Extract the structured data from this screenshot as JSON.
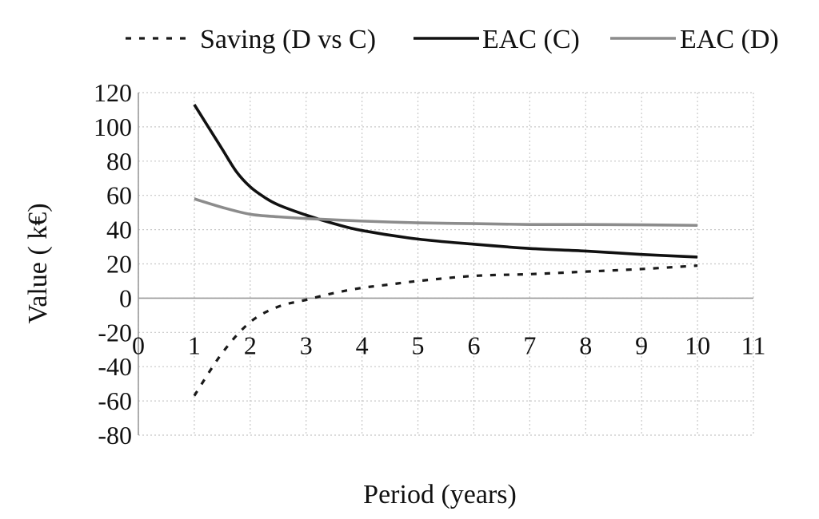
{
  "chart_data": {
    "type": "line",
    "title": "",
    "xlabel": "Period (years)",
    "ylabel": "Value ( k€)",
    "xlim": [
      0,
      11
    ],
    "ylim": [
      -80,
      120
    ],
    "xticks": [
      0,
      1,
      2,
      3,
      4,
      5,
      6,
      7,
      8,
      9,
      10,
      11
    ],
    "yticks": [
      -80,
      -60,
      -40,
      -20,
      0,
      20,
      40,
      60,
      80,
      100,
      120
    ],
    "grid": true,
    "legend_position": "top",
    "series": [
      {
        "name": "Saving (D vs C)",
        "style": "dashed",
        "color": "#1a1a1a",
        "x": [
          1,
          1.5,
          2,
          2.5,
          3,
          3.5,
          4,
          4.5,
          5,
          6,
          7,
          8,
          9,
          10
        ],
        "values": [
          -57,
          -32,
          -14,
          -5,
          -1,
          3,
          6,
          8,
          10,
          13,
          14,
          15.5,
          17,
          19
        ]
      },
      {
        "name": "EAC (C)",
        "style": "solid",
        "color": "#111111",
        "x": [
          1,
          1.25,
          1.5,
          1.75,
          2,
          2.25,
          2.5,
          3,
          3.5,
          4,
          5,
          6,
          7,
          8,
          9,
          10
        ],
        "values": [
          113,
          100,
          87,
          74,
          65,
          59,
          54.5,
          48.5,
          43.5,
          39.5,
          34.5,
          31.5,
          29,
          27.5,
          25.5,
          24
        ]
      },
      {
        "name": "EAC (D)",
        "style": "solid",
        "color": "#8c8c8c",
        "x": [
          1,
          1.5,
          2,
          2.5,
          3,
          4,
          5,
          6,
          7,
          8,
          9,
          10
        ],
        "values": [
          58,
          53,
          49,
          47.5,
          46.5,
          45,
          44,
          43.5,
          43,
          43,
          42.8,
          42.5
        ]
      }
    ]
  }
}
